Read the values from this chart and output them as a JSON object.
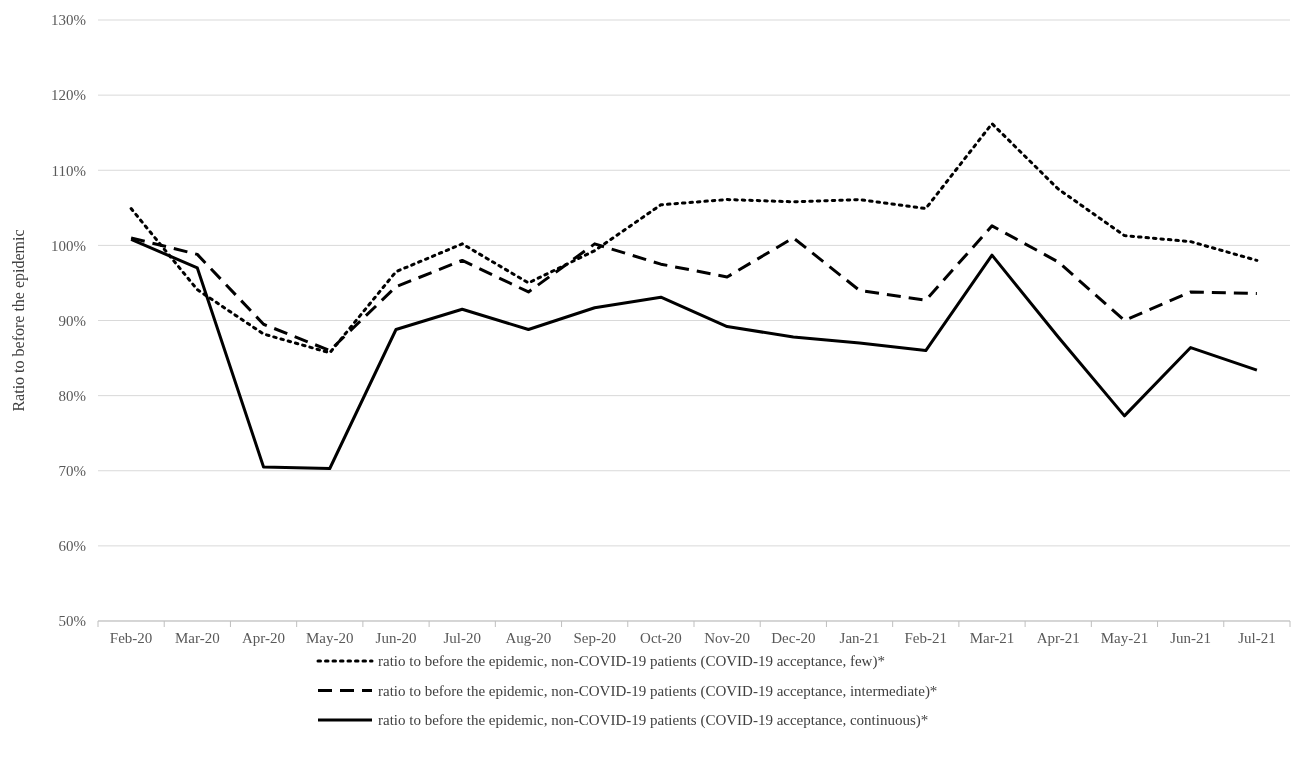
{
  "chart_data": {
    "type": "line",
    "ylabel": "Ratio to before the epidemic",
    "categories": [
      "Feb-20",
      "Mar-20",
      "Apr-20",
      "May-20",
      "Jun-20",
      "Jul-20",
      "Aug-20",
      "Sep-20",
      "Oct-20",
      "Nov-20",
      "Dec-20",
      "Jan-21",
      "Feb-21",
      "Mar-21",
      "Apr-21",
      "May-21",
      "Jun-21",
      "Jul-21"
    ],
    "series": [
      {
        "name": "ratio to before the epidemic, non-COVID-19 patients (COVID-19 acceptance, few)*",
        "color": "#000000",
        "line_style": "dotted",
        "values": [
          104.9,
          94.1,
          88.2,
          85.7,
          96.5,
          100.2,
          95.0,
          99.3,
          105.4,
          106.1,
          105.8,
          106.1,
          104.9,
          116.2,
          107.5,
          101.3,
          100.5,
          98.0
        ]
      },
      {
        "name": "ratio to before the epidemic, non-COVID-19 patients (COVID-19 acceptance, intermediate)*",
        "color": "#000000",
        "line_style": "dashed",
        "values": [
          101.0,
          98.8,
          89.5,
          86.0,
          94.5,
          98.0,
          93.8,
          100.2,
          97.5,
          95.8,
          101.0,
          94.0,
          92.7,
          102.6,
          97.8,
          90.0,
          93.8,
          93.6
        ]
      },
      {
        "name": "ratio to before the epidemic, non-COVID-19 patients (COVID-19 acceptance, continuous)*",
        "color": "#000000",
        "line_style": "solid",
        "values": [
          100.8,
          97.0,
          70.5,
          70.3,
          88.8,
          91.5,
          88.8,
          91.7,
          93.1,
          89.2,
          87.8,
          87.0,
          86.0,
          98.7,
          87.8,
          77.3,
          86.4,
          83.4
        ]
      }
    ],
    "ylim": [
      50,
      130
    ],
    "yticks": [
      {
        "value": 50,
        "label": "50%"
      },
      {
        "value": 60,
        "label": "60%"
      },
      {
        "value": 70,
        "label": "70%"
      },
      {
        "value": 80,
        "label": "80%"
      },
      {
        "value": 90,
        "label": "90%"
      },
      {
        "value": 100,
        "label": "100%"
      },
      {
        "value": 110,
        "label": "110%"
      },
      {
        "value": 120,
        "label": "120%"
      },
      {
        "value": 130,
        "label": "130%"
      }
    ],
    "grid": "y",
    "legend": "bottom",
    "marker": "none"
  }
}
